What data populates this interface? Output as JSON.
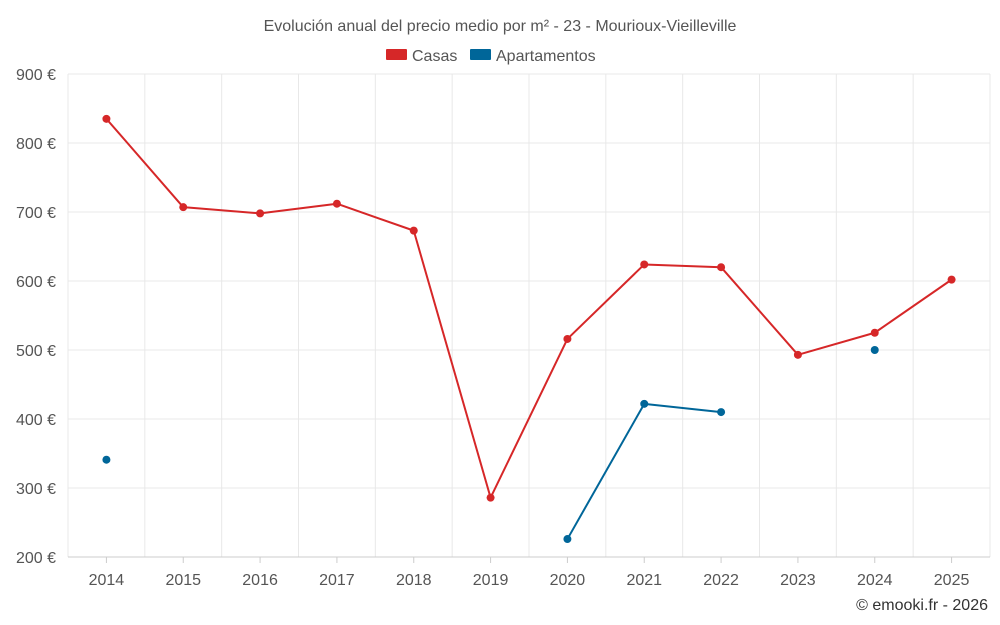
{
  "chart_data": {
    "type": "line",
    "title": "Evolución anual del precio medio por m² - 23 - Mourioux-Vieilleville",
    "categories": [
      "2014",
      "2015",
      "2016",
      "2017",
      "2018",
      "2019",
      "2020",
      "2021",
      "2022",
      "2023",
      "2024",
      "2025"
    ],
    "series": [
      {
        "name": "Casas",
        "color": "#d62728",
        "values": [
          835,
          707,
          698,
          712,
          673,
          286,
          516,
          624,
          620,
          493,
          525,
          602
        ]
      },
      {
        "name": "Apartamentos",
        "color": "#006699",
        "values": [
          341,
          null,
          null,
          null,
          null,
          null,
          226,
          422,
          410,
          null,
          500,
          null
        ]
      }
    ],
    "ylim": [
      200,
      900
    ],
    "yticks": [
      200,
      300,
      400,
      500,
      600,
      700,
      800,
      900
    ],
    "ytick_labels": [
      "200 €",
      "300 €",
      "400 €",
      "500 €",
      "600 €",
      "700 €",
      "800 €",
      "900 €"
    ],
    "xlabel": "",
    "ylabel": "",
    "legend": "top-center",
    "grid": true
  },
  "credit": "© emooki.fr - 2026"
}
